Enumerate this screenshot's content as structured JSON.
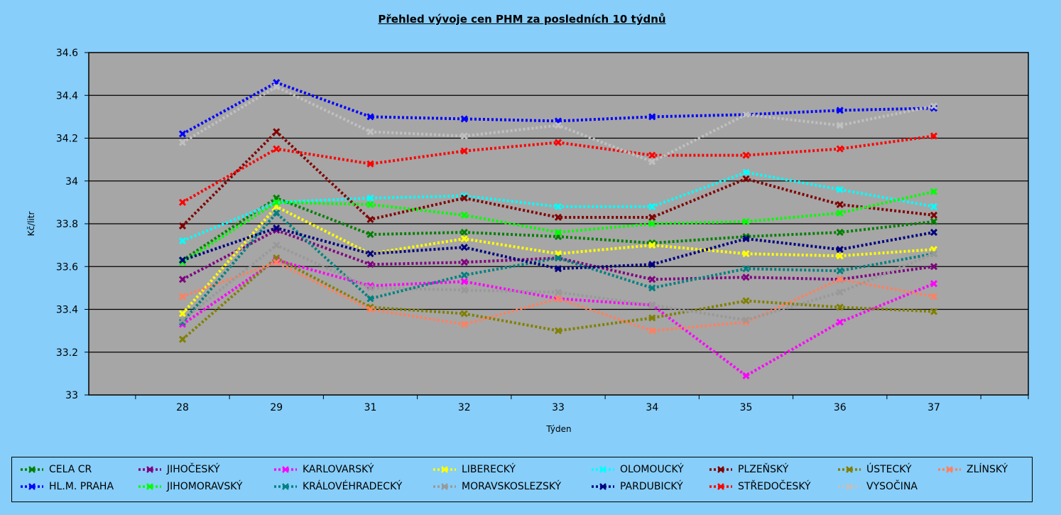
{
  "chart_data": {
    "type": "line",
    "title": "Přehled vývoje cen PHM za posledních 10 týdnů",
    "xlabel": "Týden",
    "ylabel": "Kč/litr",
    "x": [
      "28",
      "29",
      "31",
      "32",
      "33",
      "34",
      "35",
      "36",
      "37"
    ],
    "ylim": [
      33,
      34.6
    ],
    "yticks": [
      "33",
      "33.2",
      "33.4",
      "33.6",
      "33.8",
      "34",
      "34.2",
      "34.4",
      "34.6"
    ],
    "grid": "horizontal",
    "legend_position": "bottom",
    "series": [
      {
        "name": "CELA CR",
        "color": "#008000",
        "values": [
          33.63,
          33.92,
          33.75,
          33.76,
          33.74,
          33.71,
          33.74,
          33.76,
          33.81
        ]
      },
      {
        "name": "JIHOČESKÝ",
        "color": "#800080",
        "values": [
          33.54,
          33.77,
          33.61,
          33.62,
          33.64,
          33.54,
          33.55,
          33.54,
          33.6
        ]
      },
      {
        "name": "KARLOVARSKÝ",
        "color": "#FF00FF",
        "values": [
          33.33,
          33.63,
          33.51,
          33.53,
          33.45,
          33.42,
          33.09,
          33.34,
          33.52
        ]
      },
      {
        "name": "LIBERECKÝ",
        "color": "#FFFF00",
        "values": [
          33.38,
          33.88,
          33.66,
          33.73,
          33.66,
          33.7,
          33.66,
          33.65,
          33.68
        ]
      },
      {
        "name": "OLOMOUCKÝ",
        "color": "#00FFFF",
        "values": [
          33.72,
          33.9,
          33.92,
          33.93,
          33.88,
          33.88,
          34.04,
          33.96,
          33.88
        ]
      },
      {
        "name": "PLZEŇSKÝ",
        "color": "#800000",
        "values": [
          33.79,
          34.23,
          33.82,
          33.92,
          33.83,
          33.83,
          34.01,
          33.89,
          33.84
        ]
      },
      {
        "name": "ÚSTECKÝ",
        "color": "#808000",
        "values": [
          33.26,
          33.64,
          33.41,
          33.38,
          33.3,
          33.36,
          33.44,
          33.41,
          33.39
        ]
      },
      {
        "name": "ZLÍNSKÝ",
        "color": "#FF8060",
        "values": [
          33.46,
          33.62,
          33.4,
          33.33,
          33.45,
          33.3,
          33.34,
          33.54,
          33.46
        ]
      },
      {
        "name": "HL.M. PRAHA",
        "color": "#0000FF",
        "values": [
          34.22,
          34.46,
          34.3,
          34.29,
          34.28,
          34.3,
          34.31,
          34.33,
          34.34
        ]
      },
      {
        "name": "JIHOMORAVSKÝ",
        "color": "#00FF00",
        "values": [
          33.62,
          33.9,
          33.89,
          33.84,
          33.76,
          33.8,
          33.81,
          33.85,
          33.95
        ]
      },
      {
        "name": "KRÁLOVÉHRADECKÝ",
        "color": "#008080",
        "values": [
          33.34,
          33.85,
          33.45,
          33.56,
          33.64,
          33.5,
          33.59,
          33.58,
          33.66
        ]
      },
      {
        "name": "MORAVSKOSLEZSKÝ",
        "color": "#999999",
        "values": [
          33.35,
          33.7,
          33.5,
          33.49,
          33.48,
          33.42,
          33.35,
          33.48,
          33.66
        ]
      },
      {
        "name": "PARDUBICKÝ",
        "color": "#000080",
        "values": [
          33.63,
          33.78,
          33.66,
          33.69,
          33.59,
          33.61,
          33.73,
          33.68,
          33.76
        ]
      },
      {
        "name": "STŘEDOČESKÝ",
        "color": "#FF0000",
        "values": [
          33.9,
          34.15,
          34.08,
          34.14,
          34.18,
          34.12,
          34.12,
          34.15,
          34.21
        ]
      },
      {
        "name": "VYSOČINA",
        "color": "#C0C0C0",
        "values": [
          34.18,
          34.44,
          34.23,
          34.21,
          34.26,
          34.09,
          34.31,
          34.26,
          34.35
        ]
      }
    ]
  }
}
